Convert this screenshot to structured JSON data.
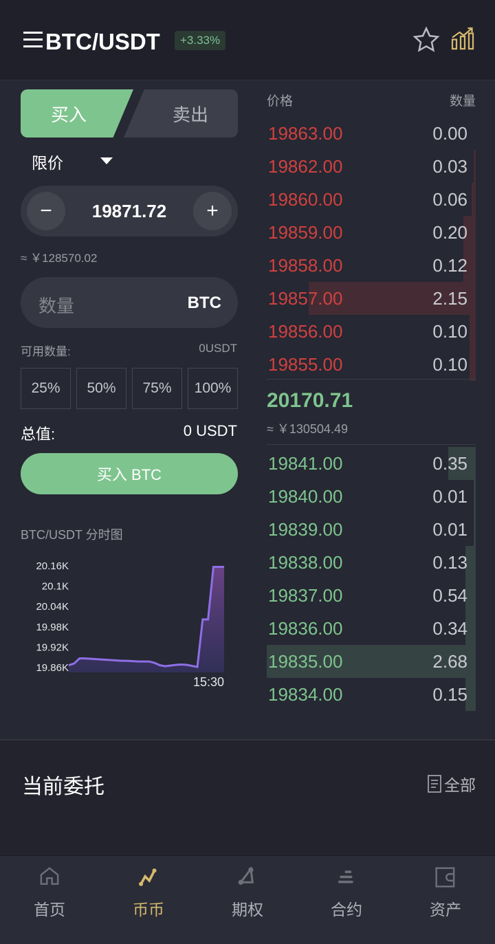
{
  "header": {
    "pair": "BTC/USDT",
    "change": "+3.33%",
    "icons": [
      "menu-icon",
      "star-icon",
      "kline-chart-icon"
    ]
  },
  "trade": {
    "buy_tab": "买入",
    "sell_tab": "卖出",
    "order_type": "限价",
    "price": "19871.72",
    "price_cny": "≈ ￥128570.02",
    "qty_placeholder": "数量",
    "qty_unit": "BTC",
    "available_label": "可用数量:",
    "available_value": "0USDT",
    "percents": [
      "25%",
      "50%",
      "75%",
      "100%"
    ],
    "total_label": "总值:",
    "total_value": "0 USDT",
    "buy_button": "买入 BTC"
  },
  "orderbook": {
    "price_header": "价格",
    "qty_header": "数量",
    "asks": [
      {
        "price": "19863.00",
        "qty": "0.00",
        "depth": 0
      },
      {
        "price": "19862.00",
        "qty": "0.03",
        "depth": 0.01
      },
      {
        "price": "19860.00",
        "qty": "0.06",
        "depth": 0.02
      },
      {
        "price": "19859.00",
        "qty": "0.20",
        "depth": 0.06
      },
      {
        "price": "19858.00",
        "qty": "0.12",
        "depth": 0.06
      },
      {
        "price": "19857.00",
        "qty": "2.15",
        "depth": 0.8
      },
      {
        "price": "19856.00",
        "qty": "0.10",
        "depth": 0.03
      },
      {
        "price": "19855.00",
        "qty": "0.10",
        "depth": 0.03
      }
    ],
    "last_price": "20170.71",
    "last_cny": "≈ ￥130504.49",
    "bids": [
      {
        "price": "19841.00",
        "qty": "0.35",
        "depth": 0.13
      },
      {
        "price": "19840.00",
        "qty": "0.01",
        "depth": 0.01
      },
      {
        "price": "19839.00",
        "qty": "0.01",
        "depth": 0.01
      },
      {
        "price": "19838.00",
        "qty": "0.13",
        "depth": 0.05
      },
      {
        "price": "19837.00",
        "qty": "0.54",
        "depth": 0.05
      },
      {
        "price": "19836.00",
        "qty": "0.34",
        "depth": 0.05
      },
      {
        "price": "19835.00",
        "qty": "2.68",
        "depth": 1.0
      },
      {
        "price": "19834.00",
        "qty": "0.15",
        "depth": 0.05
      }
    ],
    "colors": {
      "ask": "#d0413f",
      "bid": "#7ec48e"
    }
  },
  "chart_data": {
    "type": "area",
    "title": "BTC/USDT 分时图",
    "yticks": [
      "20.16K",
      "20.1K",
      "20.04K",
      "19.98K",
      "19.92K",
      "19.86K"
    ],
    "ylim": [
      19.86,
      20.16
    ],
    "xticks": [
      "15:30"
    ],
    "values": [
      19.865,
      19.87,
      19.885,
      19.885,
      19.884,
      19.883,
      19.882,
      19.881,
      19.88,
      19.879,
      19.878,
      19.878,
      19.877,
      19.876,
      19.876,
      19.876,
      19.872,
      19.865,
      19.862,
      19.864,
      19.866,
      19.867,
      19.866,
      19.863,
      19.86,
      20.0,
      20.0,
      20.155,
      20.155,
      20.155
    ],
    "color": "#8e6fe6"
  },
  "orders": {
    "title": "当前委托",
    "all_label": "全部"
  },
  "nav": [
    {
      "label": "首页",
      "icon": "home-icon"
    },
    {
      "label": "币币",
      "icon": "spot-icon",
      "active": true
    },
    {
      "label": "期权",
      "icon": "options-icon"
    },
    {
      "label": "合约",
      "icon": "contract-icon"
    },
    {
      "label": "资产",
      "icon": "wallet-icon"
    }
  ]
}
